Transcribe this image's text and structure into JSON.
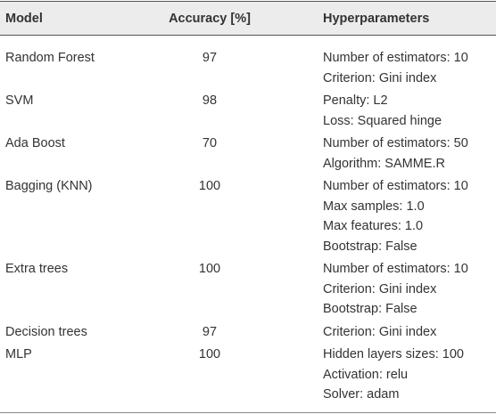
{
  "table": {
    "header": [
      "Model",
      "Accuracy [%]",
      "Hyperparameters"
    ],
    "rows": [
      {
        "model": "Random Forest",
        "accuracy": 97,
        "hyperparameters": [
          "Number of estimators: 10",
          "Criterion: Gini index"
        ]
      },
      {
        "model": "SVM",
        "accuracy": 98,
        "hyperparameters": [
          "Penalty: L2",
          "Loss: Squared hinge"
        ]
      },
      {
        "model": "Ada Boost",
        "accuracy": 70,
        "hyperparameters": [
          "Number of estimators: 50",
          "Algorithm: SAMME.R"
        ]
      },
      {
        "model": "Bagging (KNN)",
        "accuracy": 100,
        "hyperparameters": [
          "Number of estimators: 10",
          "Max samples: 1.0",
          "Max features: 1.0",
          "Bootstrap: False"
        ]
      },
      {
        "model": "Extra trees",
        "accuracy": 100,
        "hyperparameters": [
          "Number of estimators: 10",
          "Criterion: Gini index",
          "Bootstrap: False"
        ]
      },
      {
        "model": "Decision trees",
        "accuracy": 97,
        "hyperparameters": [
          "Criterion: Gini index"
        ]
      },
      {
        "model": "MLP",
        "accuracy": 100,
        "hyperparameters": [
          "Hidden layers sizes: 100",
          "Activation: relu",
          "Solver: adam"
        ]
      }
    ]
  }
}
